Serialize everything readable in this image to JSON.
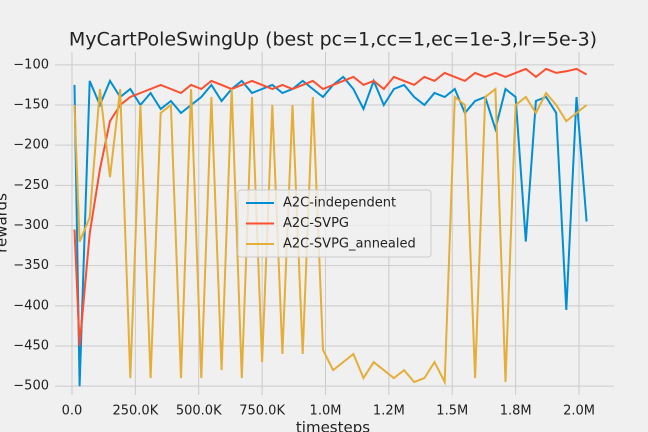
{
  "chart_data": {
    "type": "line",
    "title": "MyCartPoleSwingUp (best pc=1,cc=1,ec=1e-3,lr=5e-3)",
    "xlabel": "timesteps",
    "ylabel": "rewards",
    "x": [
      10000,
      30000,
      70000,
      110000,
      150000,
      190000,
      230000,
      270000,
      310000,
      350000,
      390000,
      430000,
      470000,
      510000,
      550000,
      590000,
      630000,
      670000,
      710000,
      750000,
      790000,
      830000,
      870000,
      910000,
      950000,
      990000,
      1030000,
      1070000,
      1110000,
      1150000,
      1190000,
      1230000,
      1270000,
      1310000,
      1350000,
      1390000,
      1430000,
      1470000,
      1510000,
      1550000,
      1590000,
      1630000,
      1670000,
      1710000,
      1750000,
      1790000,
      1830000,
      1870000,
      1910000,
      1950000,
      1990000,
      2030000
    ],
    "series": [
      {
        "name": "A2C-independent",
        "color": "#008fd5",
        "values": [
          -125,
          -500,
          -120,
          -150,
          -120,
          -140,
          -130,
          -150,
          -135,
          -155,
          -145,
          -160,
          -150,
          -140,
          -125,
          -145,
          -130,
          -120,
          -135,
          -130,
          -125,
          -135,
          -130,
          -120,
          -130,
          -140,
          -125,
          -115,
          -130,
          -155,
          -120,
          -150,
          -130,
          -125,
          -140,
          -150,
          -135,
          -140,
          -130,
          -160,
          -145,
          -140,
          -180,
          -130,
          -140,
          -320,
          -145,
          -140,
          -160,
          -405,
          -140,
          -295
        ]
      },
      {
        "name": "A2C-SVPG",
        "color": "#fc4f30",
        "values": [
          -305,
          -450,
          -310,
          -230,
          -170,
          -150,
          -140,
          -135,
          -130,
          -125,
          -130,
          -135,
          -125,
          -130,
          -120,
          -125,
          -130,
          -125,
          -120,
          -125,
          -130,
          -125,
          -130,
          -125,
          -120,
          -130,
          -125,
          -120,
          -115,
          -125,
          -120,
          -130,
          -115,
          -120,
          -125,
          -115,
          -120,
          -110,
          -115,
          -120,
          -110,
          -115,
          -110,
          -115,
          -110,
          -105,
          -115,
          -105,
          -110,
          -108,
          -105,
          -112
        ]
      },
      {
        "name": "A2C-SVPG_annealed",
        "color": "#e5ae38",
        "values": [
          -150,
          -320,
          -290,
          -130,
          -240,
          -130,
          -490,
          -150,
          -490,
          -160,
          -150,
          -490,
          -130,
          -490,
          -140,
          -480,
          -130,
          -490,
          -140,
          -470,
          -150,
          -460,
          -150,
          -460,
          -140,
          -455,
          -480,
          -470,
          -460,
          -490,
          -470,
          -480,
          -490,
          -480,
          -495,
          -490,
          -470,
          -495,
          -140,
          -150,
          -490,
          -140,
          -130,
          -495,
          -150,
          -140,
          -160,
          -135,
          -150,
          -170,
          -160,
          -150
        ]
      }
    ],
    "xlim": [
      -67000,
      2138000
    ],
    "xticks": [
      {
        "value": 0,
        "label": "0.0"
      },
      {
        "value": 250000,
        "label": "250.0K"
      },
      {
        "value": 500000,
        "label": "500.0K"
      },
      {
        "value": 750000,
        "label": "750.0K"
      },
      {
        "value": 1000000,
        "label": "1.0M"
      },
      {
        "value": 1250000,
        "label": "1.2M"
      },
      {
        "value": 1500000,
        "label": "1.5M"
      },
      {
        "value": 1750000,
        "label": "1.8M"
      },
      {
        "value": 2000000,
        "label": "2.0M"
      }
    ],
    "ylim": [
      -511,
      -84
    ],
    "yticks": [
      {
        "value": -500,
        "label": "−500"
      },
      {
        "value": -450,
        "label": "−450"
      },
      {
        "value": -400,
        "label": "−400"
      },
      {
        "value": -350,
        "label": "−350"
      },
      {
        "value": -300,
        "label": "−300"
      },
      {
        "value": -250,
        "label": "−250"
      },
      {
        "value": -200,
        "label": "−200"
      },
      {
        "value": -150,
        "label": "−150"
      },
      {
        "value": -100,
        "label": "−100"
      }
    ],
    "grid": true,
    "legend": "center"
  }
}
